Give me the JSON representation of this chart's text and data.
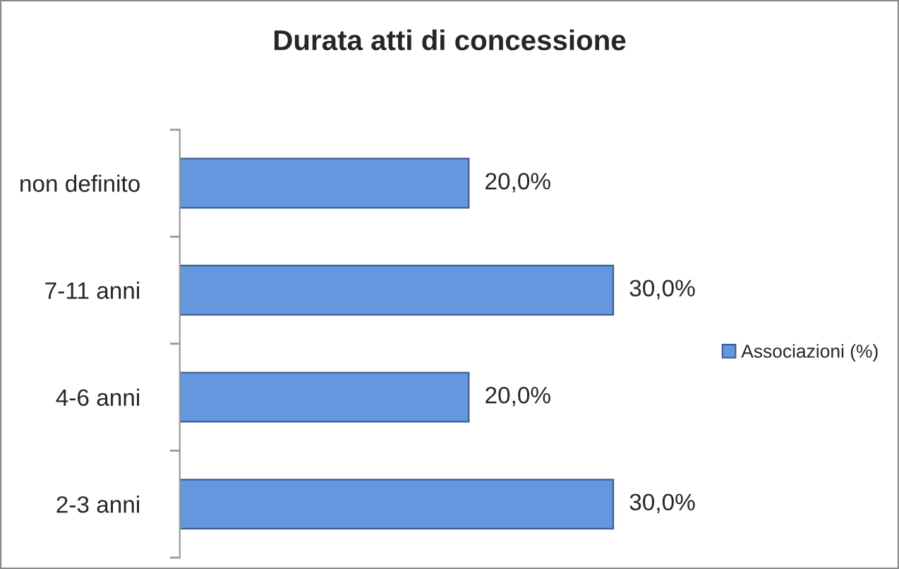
{
  "chart_data": {
    "type": "bar",
    "orientation": "horizontal",
    "title": "Durata atti di concessione",
    "categories": [
      "non definito",
      "7-11 anni",
      "4-6 anni",
      "2-3 anni"
    ],
    "series": [
      {
        "name": "Associazioni (%)",
        "color": "#6497dd",
        "values": [
          20,
          30,
          20,
          30
        ],
        "value_labels": [
          "20,0%",
          "30,0%",
          "20,0%",
          "30,0%"
        ]
      }
    ],
    "legend": "right",
    "grid": false,
    "tick_labels": "y"
  }
}
